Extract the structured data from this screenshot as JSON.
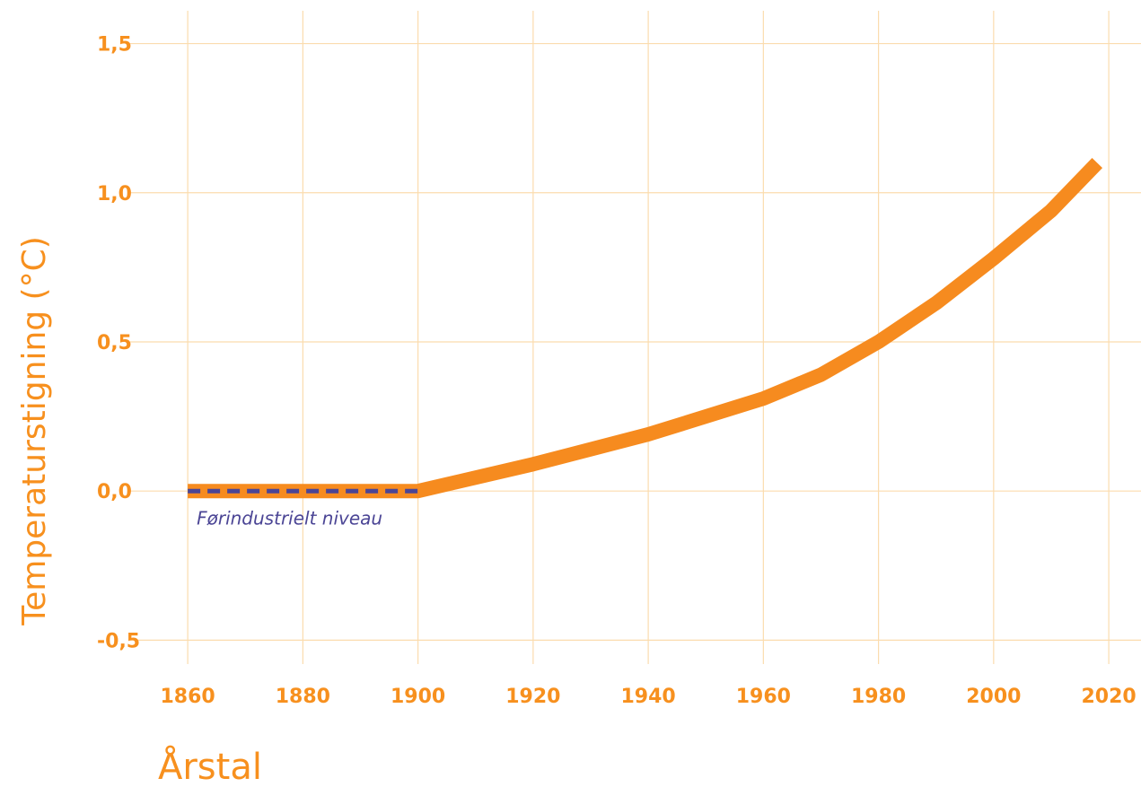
{
  "chart_data": {
    "type": "line",
    "y_label": "Temperaturstigning (°C)",
    "x_label": "Årstal",
    "annotation": "Førindustrielt niveau",
    "series": [
      {
        "color": "#f68b1f",
        "x": [
          1860,
          1900,
          1920,
          1940,
          1960,
          1970,
          1980,
          1990,
          2000,
          2010,
          2018
        ],
        "values": [
          0,
          0,
          0.09,
          0.19,
          0.31,
          0.39,
          0.5,
          0.63,
          0.78,
          0.94,
          1.1
        ]
      },
      {
        "color": "#4b4595",
        "dashed": true,
        "x": [
          1860,
          1900
        ],
        "values": [
          0,
          0
        ]
      }
    ],
    "xlim": [
      1850,
      2025.6
    ],
    "ylim": [
      -0.58,
      1.61
    ],
    "xticks": [
      1860,
      1880,
      1900,
      1920,
      1940,
      1960,
      1980,
      2000,
      2020
    ],
    "yticks": [
      {
        "value": -0.5,
        "label": "-0,5"
      },
      {
        "value": 0,
        "label": "0,0"
      },
      {
        "value": 0.5,
        "label": "0,5"
      },
      {
        "value": 1,
        "label": "1,0"
      },
      {
        "value": 1.5,
        "label": "1,5"
      }
    ],
    "grid": true
  }
}
